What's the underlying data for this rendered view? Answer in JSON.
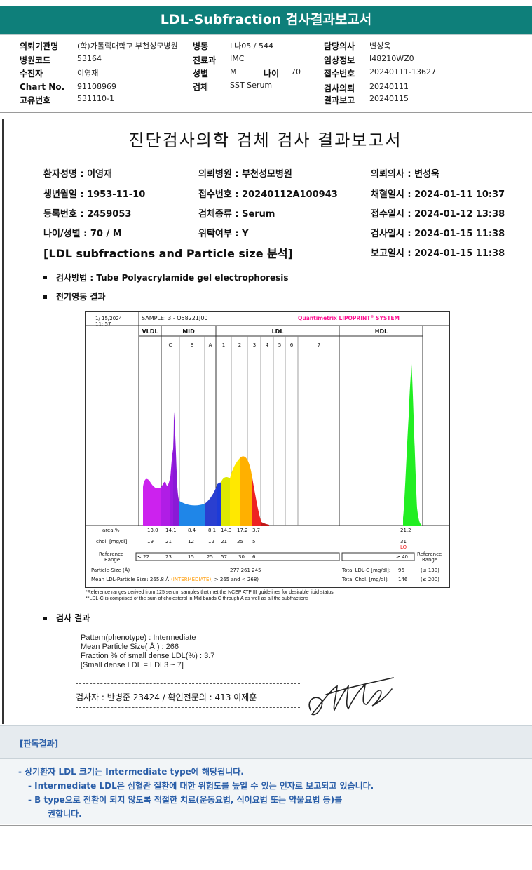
{
  "header": {
    "title": "LDL-Subfraction 검사결과보고서",
    "fields": [
      {
        "label": "의뢰기관명",
        "value": "(학)가톨릭대학교 부천성모병원"
      },
      {
        "label": "병동",
        "value": "L나05 / 544"
      },
      {
        "label": "담당의사",
        "value": "변성욱"
      },
      {
        "label": "병원코드",
        "value": "53164"
      },
      {
        "label": "진료과",
        "value": "IMC"
      },
      {
        "label": "임상정보",
        "value": "I48210WZ0"
      },
      {
        "label": "수진자",
        "value": "이영재"
      },
      {
        "label": "성별",
        "value": "M"
      },
      {
        "label": "나이",
        "value": "70"
      },
      {
        "label": "접수번호",
        "value": "20240111-13627"
      },
      {
        "label": "Chart No.",
        "value": "91108969"
      },
      {
        "label": "검체",
        "value": "SST Serum"
      },
      {
        "label": "검사의뢰",
        "value": "20240111"
      },
      {
        "label": "고유번호",
        "value": "531110-1"
      },
      {
        "label": "결과보고",
        "value": "20240115"
      }
    ]
  },
  "report": {
    "title": "진단검사의학 검체 검사 결과보고서",
    "patient": {
      "name": "환자성명 : 이영재",
      "hospital": "의뢰병원 : 부천성모병원",
      "doctor": "의뢰의사 : 변성욱",
      "birth": "생년월일 : 1953-11-10",
      "receipt_no": "접수번호 : 20240112A100943",
      "collected": "채혈일시 : 2024-01-11 10:37",
      "reg_no": "등록번호 : 2459053",
      "specimen": "검체종류 : Serum",
      "received": "접수일시 : 2024-01-12 13:38",
      "age_sex": "나이/성별 : 70 / M",
      "outsourced": "위탁여부 : Y",
      "tested": "검사일시 : 2024-01-15 11:38",
      "reported": "보고일시 : 2024-01-15 11:38"
    },
    "section_title": "[LDL subfractions and Particle size 분석]",
    "method": "검사방법 : Tube Polyacrylamide gel electrophoresis",
    "electro_title": "전기영동 결과",
    "result_title": "검사 결과",
    "results": [
      "Pattern(phenotype) : Intermediate",
      "Mean Particle Size( Å ) : 266",
      "Fraction % of small dense LDL(%) : 3.7",
      "[Small dense LDL = LDL3 ~ 7]"
    ],
    "signature_line": "검사자 : 반병준  23424  /  확인전문의 : 413  이제훈"
  },
  "chart_data": {
    "type": "area",
    "header": {
      "date": "1/ 15/2024",
      "time": "11: 57",
      "sample": "SAMPLE:   3 - O58221J00",
      "brand": "Quantimetrix LIPOPRINT",
      "brand_sup": "®",
      "brand_tail": " SYSTEM"
    },
    "regions": [
      "VLDL",
      "MID",
      "LDL",
      "HDL"
    ],
    "bands": [
      "C",
      "B",
      "A",
      "1",
      "2",
      "3",
      "4",
      "5",
      "6",
      "7"
    ],
    "rows": {
      "area_label": "area.%",
      "area_values": [
        "13.0",
        "14.1",
        "8.4",
        "8.1",
        "14.3",
        "17.2",
        "3.7"
      ],
      "area_hdl": "21.2",
      "chol_label": "chol. [mg/dl]",
      "chol_values": [
        "19",
        "21",
        "12",
        "12",
        "21",
        "25",
        "5"
      ],
      "chol_hdl": "31",
      "chol_hdl_flag": "LO",
      "ref_label_1": "Reference",
      "ref_label_2": "Range",
      "ref_values": [
        "≤  22",
        "23",
        "15",
        "25",
        "57",
        "30",
        "6"
      ],
      "ref_hdl": "≥ 40",
      "ref_right_1": "Reference",
      "ref_right_2": "Range",
      "psize_label": "Particle-Size (Å)",
      "psize_values": "277    261    245",
      "mean_label": "Mean LDL-Particle Size:   265.8 Å",
      "mean_flag": "(INTERMEDIATE)",
      "mean_ref": "; > 265 and < 268)",
      "total_ldl_label": "Total LDL-C [mg/dl]:",
      "total_ldl_value": "96",
      "total_ldl_ref": "(≤ 130)",
      "total_chol_label": "Total Chol. [mg/dl]:",
      "total_chol_value": "146",
      "total_chol_ref": "(≤ 200)"
    },
    "footnotes": [
      "*Reference ranges derived from 125 serum samples that met the NCEP ATP III guidelines for desirable lipid status",
      "**LDL-C is comprised of the sum of cholesterol in Mid bands C through A as well as all the subfractions"
    ],
    "colors": {
      "vldl": "#cc22ee",
      "c": "#8a1ad6",
      "b": "#1f86e8",
      "a": "#2050d8",
      "ldl1": "#ffe800",
      "ldl2": "#ffb000",
      "ldl3": "#ee2222",
      "hdl": "#22ee22",
      "brand": "#ff1493"
    }
  },
  "opinion": {
    "title": "[판독결과]",
    "lines": [
      "-  상기환자 LDL 크기는 Intermediate type에 해당됩니다.",
      "-  Intermediate LDL은 심혈관 질환에 대한 위험도를 높일 수 있는 인자로 보고되고 있습니다.",
      "-  B type으로 전환이 되지 않도록 적절한 치료(운동요법, 식이요법 또는 약물요법 등)를",
      "권합니다."
    ]
  }
}
